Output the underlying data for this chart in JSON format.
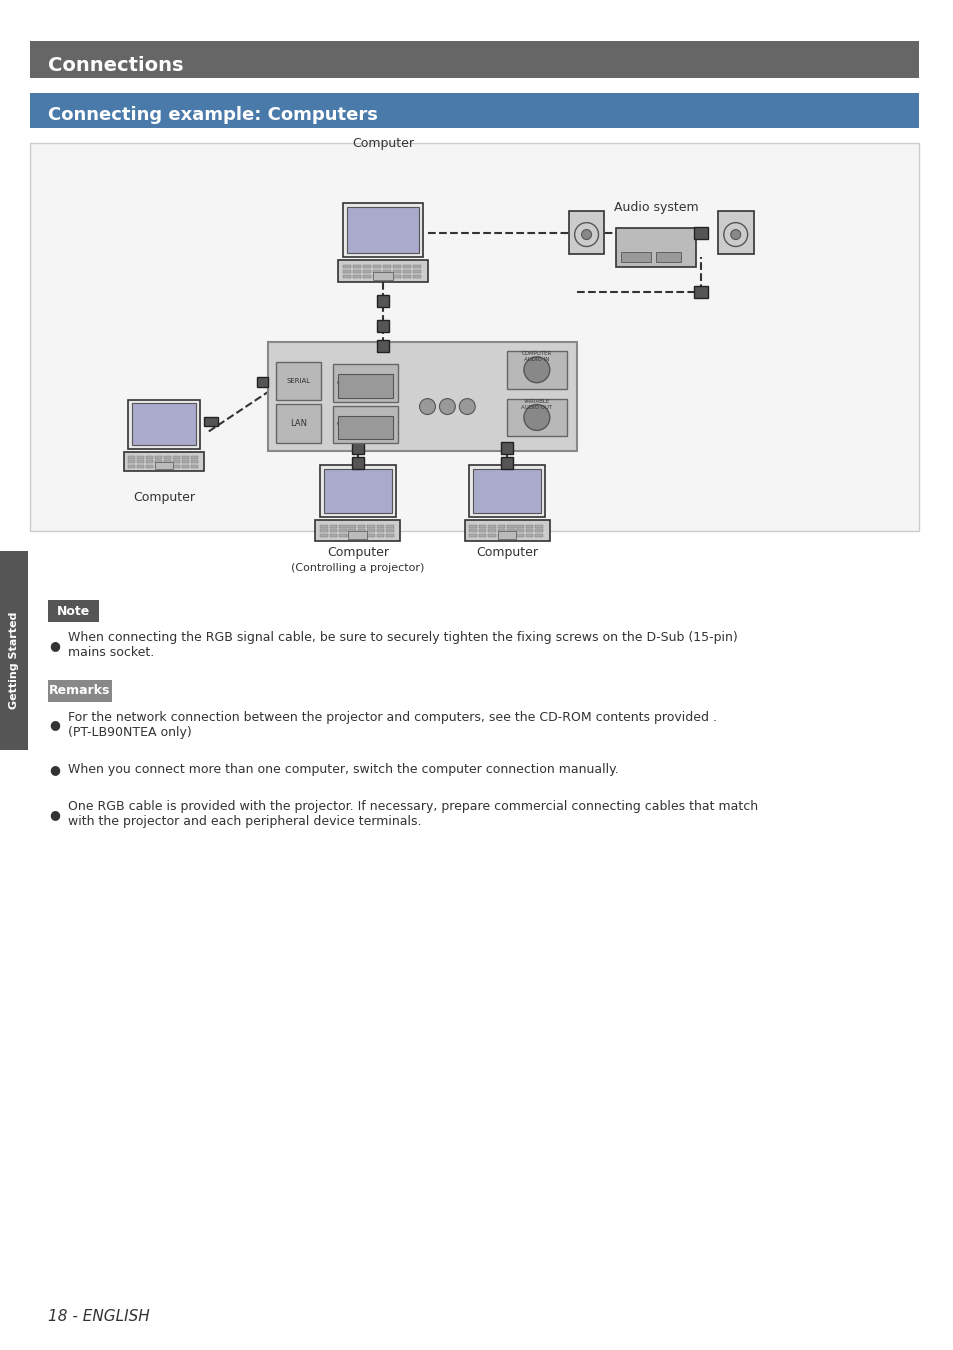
{
  "page_bg": "#ffffff",
  "header_bg": "#666666",
  "header_text": "Connections",
  "header_text_color": "#ffffff",
  "subheader_bg": "#5588bb",
  "subheader_text": "Connecting example: Computers",
  "subheader_text_color": "#ffffff",
  "note_bg": "#555555",
  "note_text": "Note",
  "note_text_color": "#ffffff",
  "remarks_bg": "#888888",
  "remarks_text": "Remarks",
  "remarks_text_color": "#ffffff",
  "sidebar_bg": "#555555",
  "sidebar_text": "Getting Started",
  "sidebar_text_color": "#ffffff",
  "footer_text": "18 - ENGLISH",
  "note_body": "When connecting the RGB signal cable, be sure to securely tighten the fixing screws on the D-Sub (15-pin)\nmains socket.",
  "remarks_bullets": [
    "For the network connection between the projector and computers, see the CD-ROM contents provided .\n(PT-LB90NTEA only)",
    "When you connect more than one computer, switch the computer connection manually.",
    "One RGB cable is provided with the projector. If necessary, prepare commercial connecting cables that match\nwith the projector and each peripheral device terminals."
  ],
  "diagram_bg": "#f0f0f0",
  "projector_panel_bg": "#d8d8d8"
}
